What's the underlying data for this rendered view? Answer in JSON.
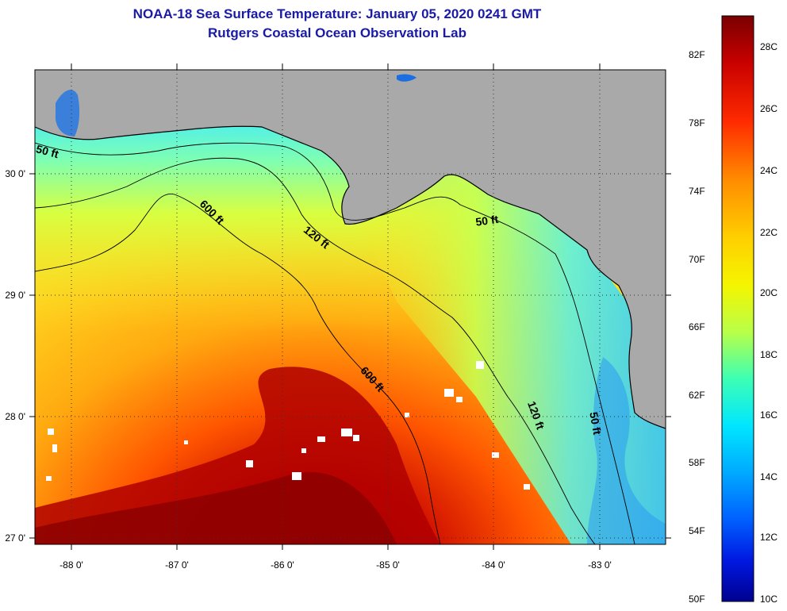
{
  "title": {
    "line1": "NOAA-18 Sea Surface Temperature:  January 05, 2020 0241 GMT",
    "line2": "Rutgers Coastal Ocean Observation Lab"
  },
  "map": {
    "x_ticks": [
      "-88 0'",
      "-87 0'",
      "-86 0'",
      "-85 0'",
      "-84 0'",
      "-83 0'"
    ],
    "y_ticks": [
      "30 0'",
      "29 0'",
      "28 0'",
      "27 0'"
    ],
    "contour_labels": [
      "50 ft",
      "50 ft",
      "50 ft",
      "120 ft",
      "120 ft",
      "600 ft",
      "600 ft"
    ]
  },
  "colorbar": {
    "fahrenheit": [
      "82F",
      "78F",
      "74F",
      "70F",
      "66F",
      "62F",
      "58F",
      "54F",
      "50F"
    ],
    "celsius": [
      "28C",
      "26C",
      "24C",
      "22C",
      "20C",
      "18C",
      "16C",
      "14C",
      "12C",
      "10C"
    ],
    "colors": [
      "#7a0000",
      "#c80000",
      "#ff2a00",
      "#ff8c00",
      "#ffd000",
      "#f5f500",
      "#b8ff48",
      "#3cffb4",
      "#00e6ff",
      "#00aaff",
      "#0060ff",
      "#0018e0",
      "#000090"
    ]
  },
  "colors": {
    "land": "#a9a9a9",
    "title": "#1a1aa8"
  }
}
